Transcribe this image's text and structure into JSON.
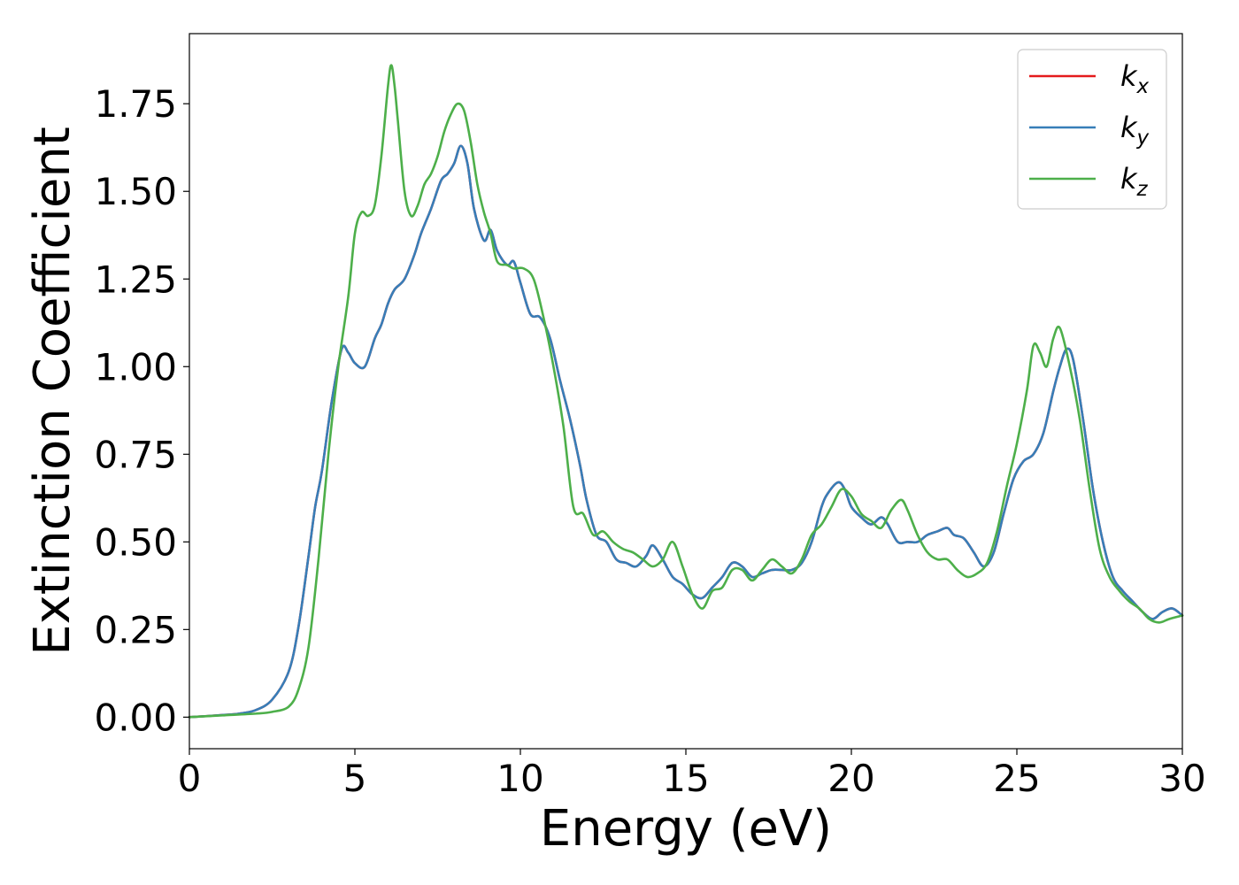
{
  "chart_data": {
    "type": "line",
    "title": "",
    "xlabel": "Energy (eV)",
    "ylabel": "Extinction Coefficient",
    "xlim": [
      0,
      30
    ],
    "ylim": [
      -0.09,
      1.95
    ],
    "xticks": [
      0,
      5,
      10,
      15,
      20,
      25,
      30
    ],
    "xtick_labels": [
      "0",
      "5",
      "10",
      "15",
      "20",
      "25",
      "30"
    ],
    "yticks": [
      0,
      0.25,
      0.5,
      0.75,
      1.0,
      1.25,
      1.5,
      1.75
    ],
    "ytick_labels": [
      "0.00",
      "0.25",
      "0.50",
      "0.75",
      "1.00",
      "1.25",
      "1.50",
      "1.75"
    ],
    "grid": false,
    "legend_position": "top-right",
    "series": [
      {
        "name": "k_x",
        "label": {
          "base": "k",
          "sub": "x"
        },
        "color": "#e41a1c",
        "x": [
          0,
          1,
          1.5,
          2,
          2.5,
          3,
          3.3,
          3.6,
          3.8,
          4.0,
          4.3,
          4.6,
          4.8,
          5.0,
          5.3,
          5.6,
          5.8,
          6.0,
          6.2,
          6.5,
          6.8,
          7.0,
          7.3,
          7.6,
          7.8,
          8.0,
          8.2,
          8.4,
          8.6,
          8.9,
          9.1,
          9.3,
          9.6,
          9.8,
          10.0,
          10.3,
          10.6,
          10.9,
          11.2,
          11.5,
          11.8,
          12.0,
          12.3,
          12.6,
          12.9,
          13.2,
          13.5,
          13.8,
          14.0,
          14.3,
          14.6,
          14.9,
          15.2,
          15.5,
          15.8,
          16.1,
          16.4,
          16.7,
          17.0,
          17.3,
          17.6,
          17.9,
          18.2,
          18.5,
          18.8,
          19.1,
          19.3,
          19.6,
          19.8,
          20.0,
          20.3,
          20.6,
          20.9,
          21.1,
          21.4,
          21.7,
          22.0,
          22.3,
          22.6,
          22.9,
          23.1,
          23.4,
          23.7,
          24.0,
          24.3,
          24.6,
          24.9,
          25.2,
          25.5,
          25.8,
          26.1,
          26.3,
          26.5,
          26.7,
          27.0,
          27.3,
          27.6,
          27.9,
          28.2,
          28.5,
          28.8,
          29.1,
          29.4,
          29.7,
          30
        ],
        "y": [
          0,
          0.006,
          0.01,
          0.02,
          0.05,
          0.13,
          0.26,
          0.46,
          0.6,
          0.7,
          0.9,
          1.05,
          1.04,
          1.01,
          1.0,
          1.08,
          1.12,
          1.18,
          1.22,
          1.25,
          1.32,
          1.38,
          1.45,
          1.53,
          1.55,
          1.58,
          1.63,
          1.58,
          1.45,
          1.36,
          1.39,
          1.33,
          1.29,
          1.3,
          1.24,
          1.15,
          1.14,
          1.08,
          0.96,
          0.85,
          0.72,
          0.62,
          0.52,
          0.5,
          0.45,
          0.44,
          0.43,
          0.46,
          0.49,
          0.45,
          0.4,
          0.38,
          0.35,
          0.34,
          0.37,
          0.4,
          0.44,
          0.43,
          0.4,
          0.41,
          0.42,
          0.42,
          0.42,
          0.44,
          0.5,
          0.6,
          0.64,
          0.67,
          0.65,
          0.6,
          0.57,
          0.55,
          0.57,
          0.55,
          0.5,
          0.5,
          0.5,
          0.52,
          0.53,
          0.54,
          0.52,
          0.51,
          0.47,
          0.43,
          0.47,
          0.58,
          0.68,
          0.73,
          0.75,
          0.81,
          0.93,
          1.0,
          1.05,
          1.02,
          0.85,
          0.65,
          0.5,
          0.4,
          0.36,
          0.33,
          0.3,
          0.28,
          0.3,
          0.31,
          0.29
        ]
      },
      {
        "name": "k_y",
        "label": {
          "base": "k",
          "sub": "y"
        },
        "color": "#377eb8",
        "x": [
          0,
          1,
          1.5,
          2,
          2.5,
          3,
          3.3,
          3.6,
          3.8,
          4.0,
          4.3,
          4.6,
          4.8,
          5.0,
          5.3,
          5.6,
          5.8,
          6.0,
          6.2,
          6.5,
          6.8,
          7.0,
          7.3,
          7.6,
          7.8,
          8.0,
          8.2,
          8.4,
          8.6,
          8.9,
          9.1,
          9.3,
          9.6,
          9.8,
          10.0,
          10.3,
          10.6,
          10.9,
          11.2,
          11.5,
          11.8,
          12.0,
          12.3,
          12.6,
          12.9,
          13.2,
          13.5,
          13.8,
          14.0,
          14.3,
          14.6,
          14.9,
          15.2,
          15.5,
          15.8,
          16.1,
          16.4,
          16.7,
          17.0,
          17.3,
          17.6,
          17.9,
          18.2,
          18.5,
          18.8,
          19.1,
          19.3,
          19.6,
          19.8,
          20.0,
          20.3,
          20.6,
          20.9,
          21.1,
          21.4,
          21.7,
          22.0,
          22.3,
          22.6,
          22.9,
          23.1,
          23.4,
          23.7,
          24.0,
          24.3,
          24.6,
          24.9,
          25.2,
          25.5,
          25.8,
          26.1,
          26.3,
          26.5,
          26.7,
          27.0,
          27.3,
          27.6,
          27.9,
          28.2,
          28.5,
          28.8,
          29.1,
          29.4,
          29.7,
          30
        ],
        "y": [
          0,
          0.006,
          0.01,
          0.02,
          0.05,
          0.13,
          0.26,
          0.46,
          0.6,
          0.7,
          0.9,
          1.05,
          1.04,
          1.01,
          1.0,
          1.08,
          1.12,
          1.18,
          1.22,
          1.25,
          1.32,
          1.38,
          1.45,
          1.53,
          1.55,
          1.58,
          1.63,
          1.58,
          1.45,
          1.36,
          1.39,
          1.33,
          1.29,
          1.3,
          1.24,
          1.15,
          1.14,
          1.08,
          0.96,
          0.85,
          0.72,
          0.62,
          0.52,
          0.5,
          0.45,
          0.44,
          0.43,
          0.46,
          0.49,
          0.45,
          0.4,
          0.38,
          0.35,
          0.34,
          0.37,
          0.4,
          0.44,
          0.43,
          0.4,
          0.41,
          0.42,
          0.42,
          0.42,
          0.44,
          0.5,
          0.6,
          0.64,
          0.67,
          0.65,
          0.6,
          0.57,
          0.55,
          0.57,
          0.55,
          0.5,
          0.5,
          0.5,
          0.52,
          0.53,
          0.54,
          0.52,
          0.51,
          0.47,
          0.43,
          0.47,
          0.58,
          0.68,
          0.73,
          0.75,
          0.81,
          0.93,
          1.0,
          1.05,
          1.02,
          0.85,
          0.65,
          0.5,
          0.4,
          0.36,
          0.33,
          0.3,
          0.28,
          0.3,
          0.31,
          0.29
        ]
      },
      {
        "name": "k_z",
        "label": {
          "base": "k",
          "sub": "z"
        },
        "color": "#4daf4a",
        "x": [
          0,
          1,
          2,
          2.5,
          3.0,
          3.3,
          3.6,
          3.9,
          4.2,
          4.5,
          4.8,
          5.0,
          5.2,
          5.4,
          5.6,
          5.8,
          6.0,
          6.1,
          6.2,
          6.3,
          6.5,
          6.7,
          6.9,
          7.1,
          7.3,
          7.5,
          7.7,
          7.9,
          8.1,
          8.3,
          8.5,
          8.7,
          8.9,
          9.1,
          9.3,
          9.6,
          9.8,
          10.1,
          10.4,
          10.7,
          11.0,
          11.3,
          11.6,
          11.9,
          12.2,
          12.5,
          12.8,
          13.1,
          13.4,
          13.7,
          14.0,
          14.3,
          14.6,
          14.9,
          15.2,
          15.5,
          15.8,
          16.1,
          16.4,
          16.7,
          17.0,
          17.3,
          17.6,
          17.9,
          18.2,
          18.5,
          18.8,
          19.1,
          19.4,
          19.7,
          20.0,
          20.3,
          20.6,
          20.9,
          21.2,
          21.5,
          21.7,
          22.0,
          22.3,
          22.6,
          22.9,
          23.2,
          23.5,
          23.8,
          24.1,
          24.4,
          24.7,
          25.0,
          25.3,
          25.5,
          25.7,
          25.9,
          26.1,
          26.3,
          26.6,
          26.9,
          27.2,
          27.5,
          27.8,
          28.1,
          28.4,
          28.7,
          29.0,
          29.3,
          29.6,
          30
        ],
        "y": [
          0,
          0.005,
          0.01,
          0.015,
          0.03,
          0.08,
          0.2,
          0.45,
          0.75,
          1.0,
          1.2,
          1.38,
          1.44,
          1.43,
          1.46,
          1.6,
          1.8,
          1.86,
          1.8,
          1.7,
          1.5,
          1.43,
          1.46,
          1.52,
          1.55,
          1.6,
          1.67,
          1.72,
          1.75,
          1.73,
          1.64,
          1.52,
          1.44,
          1.38,
          1.3,
          1.29,
          1.28,
          1.28,
          1.25,
          1.14,
          1.0,
          0.83,
          0.6,
          0.58,
          0.52,
          0.53,
          0.5,
          0.48,
          0.47,
          0.45,
          0.43,
          0.45,
          0.5,
          0.43,
          0.35,
          0.31,
          0.36,
          0.37,
          0.42,
          0.42,
          0.39,
          0.42,
          0.45,
          0.43,
          0.41,
          0.45,
          0.52,
          0.55,
          0.6,
          0.65,
          0.63,
          0.58,
          0.56,
          0.54,
          0.59,
          0.62,
          0.59,
          0.52,
          0.47,
          0.45,
          0.45,
          0.42,
          0.4,
          0.41,
          0.44,
          0.53,
          0.66,
          0.78,
          0.93,
          1.06,
          1.04,
          1.0,
          1.08,
          1.11,
          1.0,
          0.85,
          0.65,
          0.48,
          0.4,
          0.36,
          0.33,
          0.31,
          0.28,
          0.27,
          0.28,
          0.29
        ]
      }
    ]
  }
}
